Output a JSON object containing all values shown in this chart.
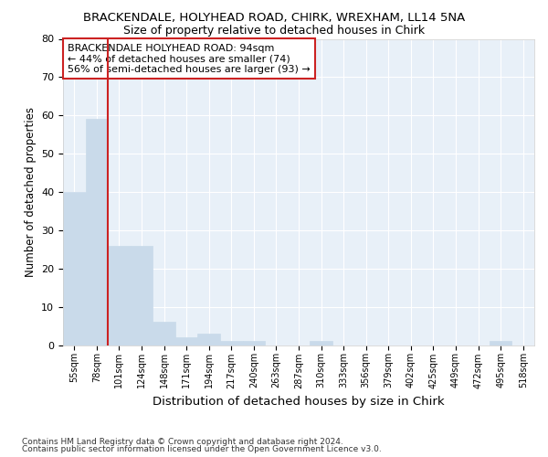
{
  "title1": "BRACKENDALE, HOLYHEAD ROAD, CHIRK, WREXHAM, LL14 5NA",
  "title2": "Size of property relative to detached houses in Chirk",
  "xlabel": "Distribution of detached houses by size in Chirk",
  "ylabel": "Number of detached properties",
  "footer1": "Contains HM Land Registry data © Crown copyright and database right 2024.",
  "footer2": "Contains public sector information licensed under the Open Government Licence v3.0.",
  "categories": [
    "55sqm",
    "78sqm",
    "101sqm",
    "124sqm",
    "148sqm",
    "171sqm",
    "194sqm",
    "217sqm",
    "240sqm",
    "263sqm",
    "287sqm",
    "310sqm",
    "333sqm",
    "356sqm",
    "379sqm",
    "402sqm",
    "425sqm",
    "449sqm",
    "472sqm",
    "495sqm",
    "518sqm"
  ],
  "values": [
    40,
    59,
    26,
    26,
    6,
    2,
    3,
    1,
    1,
    0,
    0,
    1,
    0,
    0,
    0,
    0,
    0,
    0,
    0,
    1,
    0
  ],
  "bar_color": "#c9daea",
  "bar_edge_color": "#c9daea",
  "vline_bar_index": 1,
  "vline_color": "#cc2222",
  "annotation_line1": "BRACKENDALE HOLYHEAD ROAD: 94sqm",
  "annotation_line2": "← 44% of detached houses are smaller (74)",
  "annotation_line3": "56% of semi-detached houses are larger (93) →",
  "annotation_box_facecolor": "#ffffff",
  "annotation_box_edgecolor": "#cc2222",
  "ylim": [
    0,
    80
  ],
  "yticks": [
    0,
    10,
    20,
    30,
    40,
    50,
    60,
    70,
    80
  ],
  "background_color": "#ffffff",
  "plot_background_color": "#e8f0f8",
  "grid_color": "#ffffff",
  "title1_fontsize": 9.5,
  "title2_fontsize": 9,
  "xlabel_fontsize": 9.5,
  "ylabel_fontsize": 8.5,
  "tick_fontsize": 7,
  "annotation_fontsize": 8,
  "footer_fontsize": 6.5
}
